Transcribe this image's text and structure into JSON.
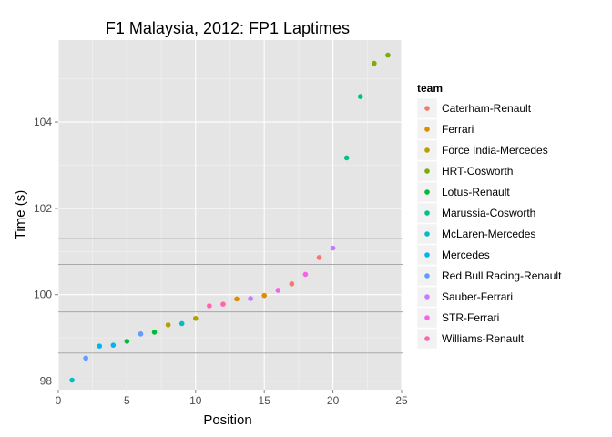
{
  "chart_data": {
    "type": "scatter",
    "title": "F1 Malaysia, 2012: FP1 Laptimes",
    "xlabel": "Position",
    "ylabel": "Time (s)",
    "xlim": [
      0,
      25
    ],
    "ylim": [
      97.8,
      105.9
    ],
    "x_ticks": [
      0,
      5,
      10,
      15,
      20,
      25
    ],
    "y_ticks": [
      98,
      100,
      102,
      104
    ],
    "grid": true,
    "legend_title": "team",
    "legend_position": "right",
    "reference_lines_y": [
      101.3,
      100.7,
      99.6,
      98.65
    ],
    "series": [
      {
        "name": "Caterham-Renault",
        "color": "#F8766D",
        "points": [
          {
            "x": 17,
            "y": 100.25
          },
          {
            "x": 19,
            "y": 100.86
          }
        ]
      },
      {
        "name": "Ferrari",
        "color": "#DE8C00",
        "points": [
          {
            "x": 13,
            "y": 99.9
          },
          {
            "x": 15,
            "y": 99.98
          }
        ]
      },
      {
        "name": "Force India-Mercedes",
        "color": "#B79F00",
        "points": [
          {
            "x": 8,
            "y": 99.3
          },
          {
            "x": 10,
            "y": 99.45
          }
        ]
      },
      {
        "name": "HRT-Cosworth",
        "color": "#7CAE00",
        "points": [
          {
            "x": 23,
            "y": 105.36
          },
          {
            "x": 24,
            "y": 105.55
          }
        ]
      },
      {
        "name": "Lotus-Renault",
        "color": "#00BA38",
        "points": [
          {
            "x": 5,
            "y": 98.92
          },
          {
            "x": 7,
            "y": 99.13
          }
        ]
      },
      {
        "name": "Marussia-Cosworth",
        "color": "#00C08B",
        "points": [
          {
            "x": 21,
            "y": 103.17
          },
          {
            "x": 22,
            "y": 104.59
          }
        ]
      },
      {
        "name": "McLaren-Mercedes",
        "color": "#00BFC4",
        "points": [
          {
            "x": 1,
            "y": 98.02
          },
          {
            "x": 9,
            "y": 99.33
          }
        ]
      },
      {
        "name": "Mercedes",
        "color": "#00B4F0",
        "points": [
          {
            "x": 3,
            "y": 98.81
          },
          {
            "x": 4,
            "y": 98.83
          }
        ]
      },
      {
        "name": "Red Bull Racing-Renault",
        "color": "#619CFF",
        "points": [
          {
            "x": 2,
            "y": 98.53
          },
          {
            "x": 6,
            "y": 99.09
          }
        ]
      },
      {
        "name": "Sauber-Ferrari",
        "color": "#C77CFF",
        "points": [
          {
            "x": 14,
            "y": 99.91
          },
          {
            "x": 20,
            "y": 101.08
          }
        ]
      },
      {
        "name": "STR-Ferrari",
        "color": "#F564E3",
        "points": [
          {
            "x": 16,
            "y": 100.1
          },
          {
            "x": 18,
            "y": 100.47
          }
        ]
      },
      {
        "name": "Williams-Renault",
        "color": "#FF64B0",
        "points": [
          {
            "x": 11,
            "y": 99.74
          },
          {
            "x": 12,
            "y": 99.78
          }
        ]
      }
    ]
  }
}
